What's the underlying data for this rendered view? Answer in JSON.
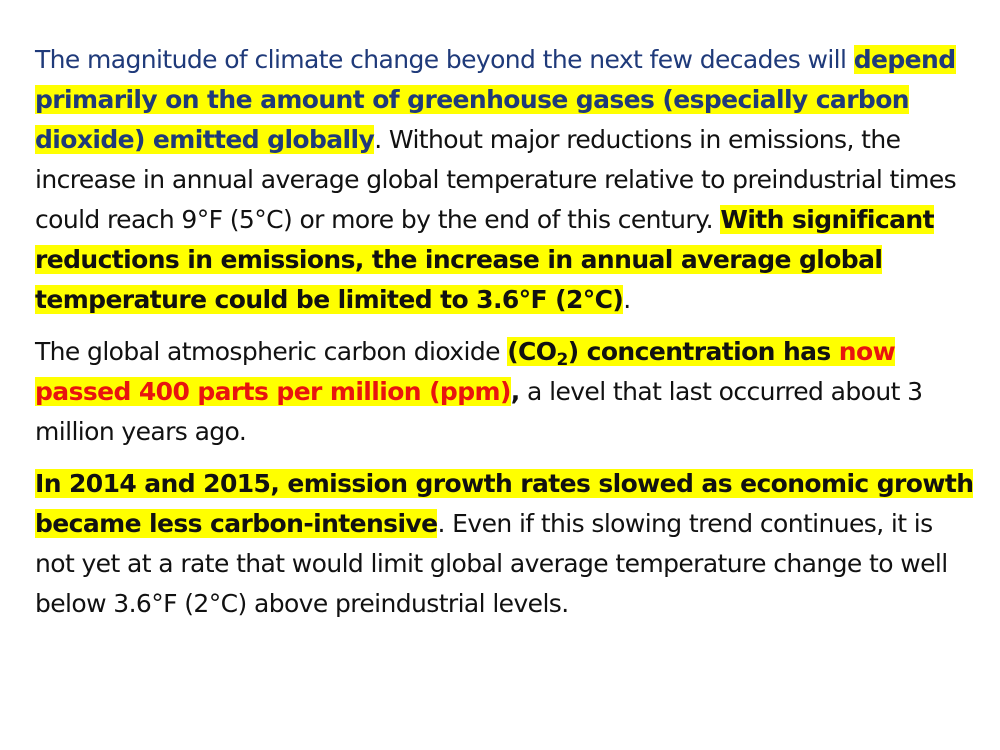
{
  "paragraph1": {
    "lead": "The magnitude of climate change beyond the next few decades will",
    "highlight": "depend primarily on the amount of greenhouse gases (especially carbon dioxide) emitted globally",
    "rest": ". Without major reductions in emissions, the increase in annual average global temperature relative to preindustrial times could reach 9°F (5°C) or more by the end of this century. ",
    "highlight2": "With significant reductions in emissions, the increase in annual average global temperature could be limited to 3.6°F (2°C)",
    "end": "."
  },
  "paragraph2": {
    "lead": "The global atmospheric carbon dioxide ",
    "highlight_pre": "(CO",
    "subscript": "2",
    "highlight_post": ") concentration has ",
    "highlight_red": "now passed 400 parts per million (ppm)",
    "comma": ",",
    "rest": " a level that last occurred about 3 million years ago."
  },
  "paragraph3": {
    "highlight": "In 2014 and 2015, emission growth rates slowed as economic growth became less carbon-intensive",
    "rest": ". Even if this slowing trend continues, it is not yet at a rate that would limit global average temperature change to well below 3.6°F (2°C) above preindustrial levels."
  },
  "colors": {
    "highlight": "#ffff00",
    "navy": "#1f3a7a",
    "red": "#e8140f",
    "text": "#111111"
  }
}
